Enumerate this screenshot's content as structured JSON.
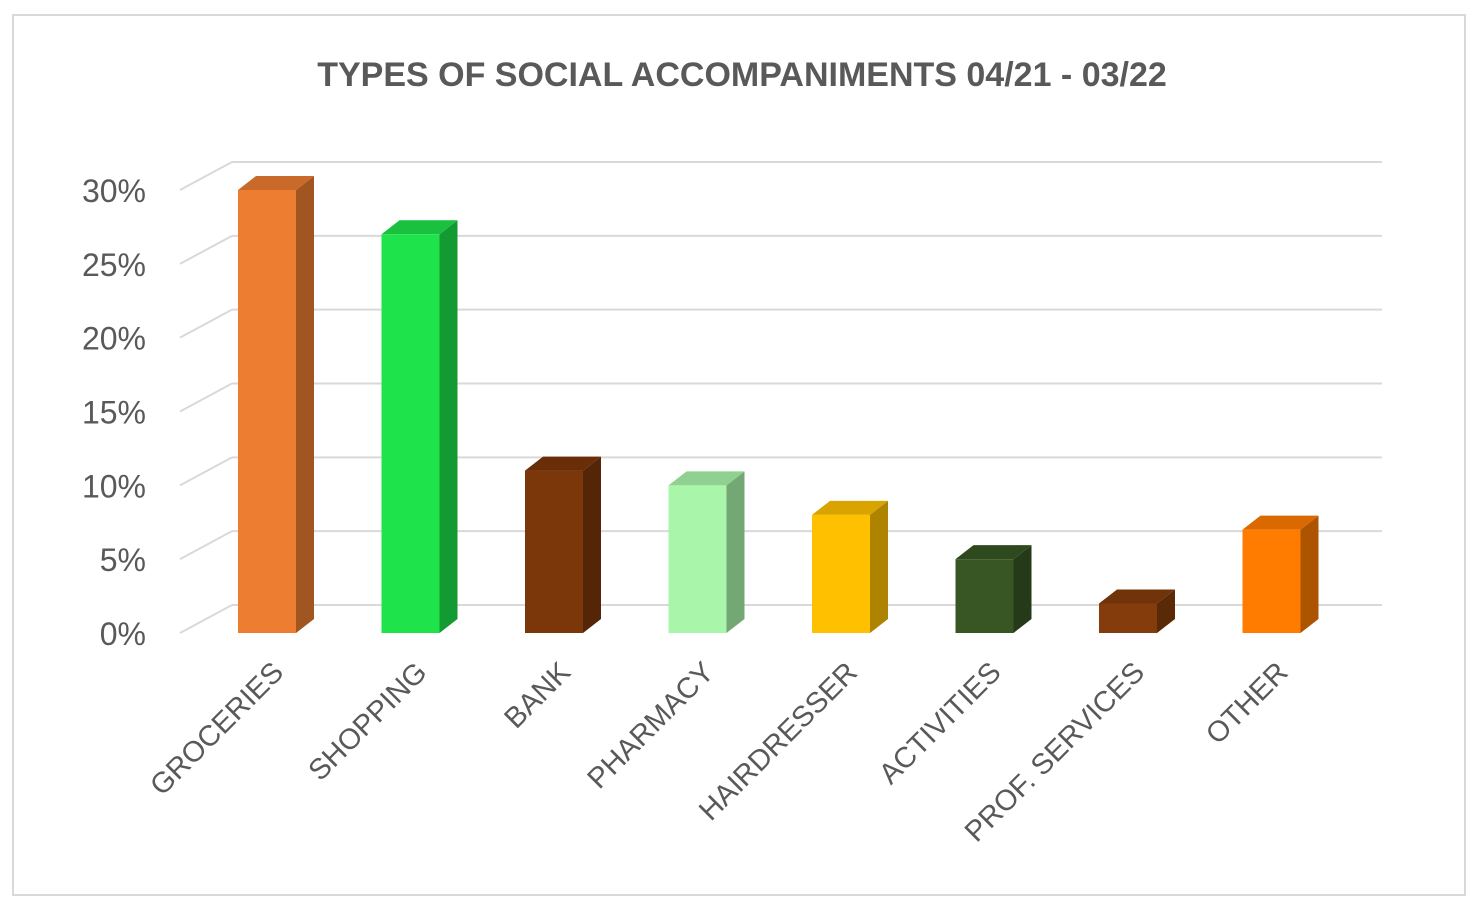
{
  "chart_data": {
    "type": "bar",
    "title": "TYPES OF SOCIAL ACCOMPANIMENTS 04/21 - 03/22",
    "xlabel": "",
    "ylabel": "",
    "categories": [
      "GROCERIES",
      "SHOPPING",
      "BANK",
      "PHARMACY",
      "HAIRDRESSER",
      "ACTIVITIES",
      "PROF. SERVICES",
      "OTHER"
    ],
    "values": [
      30,
      27,
      11,
      10,
      8,
      5,
      2,
      7
    ],
    "colors": [
      "#ed7d31",
      "#1ee34a",
      "#7b3609",
      "#a9f5a9",
      "#ffc000",
      "#375623",
      "#843c0c",
      "#ff7c00"
    ],
    "ylim": [
      0,
      30
    ],
    "yticks": [
      0,
      5,
      10,
      15,
      20,
      25,
      30
    ],
    "ytick_labels": [
      "0%",
      "5%",
      "10%",
      "15%",
      "20%",
      "25%",
      "30%"
    ],
    "grid": true,
    "legend": "none",
    "style": "3d-column"
  }
}
